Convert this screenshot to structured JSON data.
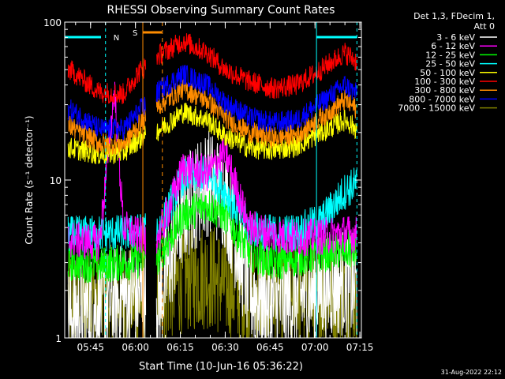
{
  "chart_data": {
    "type": "line",
    "title": "RHESSI Observing Summary Count Rates",
    "xlabel": "Start Time (10-Jun-16 05:36:22)",
    "ylabel": "Count Rate (s⁻¹ detector⁻¹)",
    "y_scale": "log",
    "ylim": [
      1,
      100
    ],
    "xlim": [
      "05:36:22",
      "07:15:30"
    ],
    "x_ticks": [
      "05:45",
      "06:00",
      "06:15",
      "06:30",
      "06:45",
      "07:00",
      "07:15"
    ],
    "y_ticks": [
      "1",
      "10",
      "100"
    ],
    "legend_header": [
      "Det 1,3, FDecim 1,",
      "Att 0"
    ],
    "legend_position": "right",
    "footer_date": "31-Aug-2022 22:12",
    "markers": {
      "N": {
        "label": "N",
        "color": "#00ffff",
        "x": [
          "05:36:22",
          "05:50:00"
        ]
      },
      "N2": {
        "label": "",
        "color": "#00ffff",
        "x": [
          "07:00:30",
          "07:14:00"
        ]
      },
      "S": {
        "label": "S",
        "color": "#ff8c00",
        "x": [
          "06:03:00",
          "06:09:00"
        ]
      }
    },
    "series": [
      {
        "name": "3 - 6 keV",
        "color": "#ffffff",
        "x": [
          "05:38",
          "05:48",
          "05:56",
          "06:01",
          "06:08",
          "06:16",
          "06:24",
          "06:30",
          "06:38",
          "06:46",
          "06:54",
          "07:02",
          "07:10",
          "07:14"
        ],
        "values": [
          1.4,
          1.6,
          1.8,
          1.9,
          1.7,
          6.5,
          9.8,
          8.0,
          2.0,
          1.6,
          1.8,
          2.1,
          2.3,
          2.0
        ]
      },
      {
        "name": "6 - 12 keV",
        "color": "#ff00ff",
        "x": [
          "05:38",
          "05:48",
          "05:53",
          "05:56",
          "06:01",
          "06:08",
          "06:16",
          "06:24",
          "06:30",
          "06:38",
          "06:46",
          "06:54",
          "07:02",
          "07:10",
          "07:14"
        ],
        "values": [
          4.2,
          4.0,
          38,
          5.0,
          4.4,
          4.5,
          12,
          11,
          15,
          5.0,
          4.5,
          4.3,
          4.4,
          4.6,
          4.5
        ]
      },
      {
        "name": "12 - 25 keV",
        "color": "#00ff00",
        "x": [
          "05:38",
          "05:48",
          "05:56",
          "06:01",
          "06:08",
          "06:16",
          "06:24",
          "06:30",
          "06:38",
          "06:46",
          "06:54",
          "07:02",
          "07:10",
          "07:14"
        ],
        "values": [
          3.0,
          2.9,
          3.0,
          3.1,
          3.3,
          6.0,
          7.0,
          6.0,
          3.5,
          3.0,
          3.2,
          3.4,
          3.6,
          3.5
        ]
      },
      {
        "name": "25 - 50 keV",
        "color": "#00ffff",
        "x": [
          "05:38",
          "05:48",
          "05:56",
          "06:01",
          "06:08",
          "06:16",
          "06:24",
          "06:30",
          "06:38",
          "06:46",
          "06:54",
          "07:02",
          "07:10",
          "07:14"
        ],
        "values": [
          4.5,
          4.6,
          4.6,
          4.7,
          5.0,
          10.5,
          11.0,
          8.5,
          5.0,
          4.6,
          4.7,
          5.5,
          8.5,
          9.5
        ]
      },
      {
        "name": "50 - 100 keV",
        "color": "#ffff00",
        "x": [
          "05:38",
          "05:48",
          "05:56",
          "06:01",
          "06:08",
          "06:16",
          "06:24",
          "06:30",
          "06:38",
          "06:46",
          "06:54",
          "07:02",
          "07:10",
          "07:14"
        ],
        "values": [
          16,
          14.5,
          15,
          18,
          21,
          27,
          24,
          19,
          16,
          15.5,
          16.5,
          20,
          24,
          21
        ]
      },
      {
        "name": "100 - 300 keV",
        "color": "#ff0000",
        "x": [
          "05:38",
          "05:48",
          "05:56",
          "06:01",
          "06:08",
          "06:16",
          "06:24",
          "06:30",
          "06:38",
          "06:46",
          "06:54",
          "07:02",
          "07:10",
          "07:14"
        ],
        "values": [
          50,
          36,
          35,
          48,
          62,
          76,
          64,
          50,
          42,
          38,
          40,
          50,
          64,
          56
        ]
      },
      {
        "name": "300 - 800 keV",
        "color": "#ff8c00",
        "x": [
          "05:38",
          "05:48",
          "05:56",
          "06:01",
          "06:08",
          "06:16",
          "06:24",
          "06:30",
          "06:38",
          "06:46",
          "06:54",
          "07:02",
          "07:10",
          "07:14"
        ],
        "values": [
          22,
          17,
          17,
          22,
          30,
          38,
          32,
          25,
          20,
          18.5,
          19.5,
          25,
          32,
          28
        ]
      },
      {
        "name": "800 - 7000 keV",
        "color": "#0000ff",
        "x": [
          "05:38",
          "05:48",
          "05:56",
          "06:01",
          "06:08",
          "06:16",
          "06:24",
          "06:30",
          "06:38",
          "06:46",
          "06:54",
          "07:02",
          "07:10",
          "07:14"
        ],
        "values": [
          28,
          21,
          21,
          27,
          37,
          47,
          40,
          31,
          25,
          23,
          24,
          31,
          40,
          35
        ]
      },
      {
        "name": "7000 - 15000 keV",
        "color": "#808000",
        "x": [
          "05:38",
          "05:48",
          "05:56",
          "06:01",
          "06:08",
          "06:16",
          "06:24",
          "06:30",
          "06:38",
          "06:46",
          "06:54",
          "07:02",
          "07:10",
          "07:14"
        ],
        "values": [
          1.7,
          1.7,
          1.8,
          1.8,
          1.9,
          2.4,
          2.5,
          2.2,
          1.9,
          1.8,
          1.8,
          1.9,
          2.0,
          1.9
        ]
      }
    ]
  }
}
